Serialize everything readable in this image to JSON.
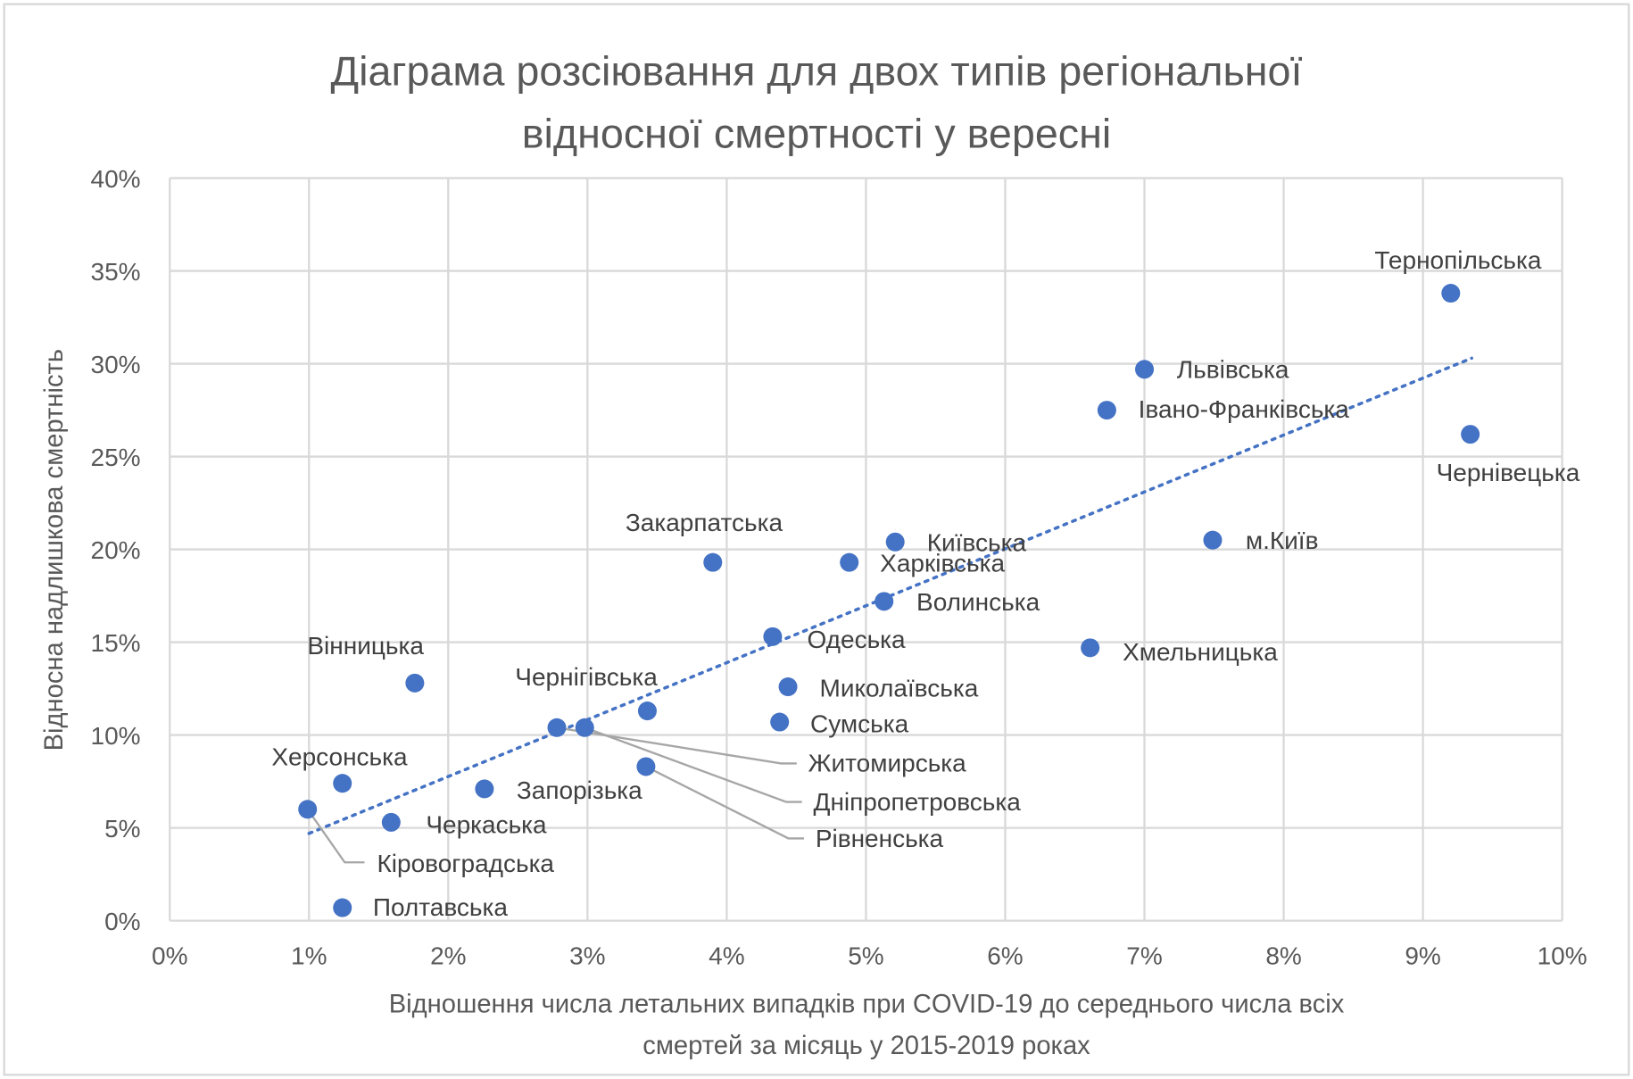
{
  "chart_data": {
    "type": "scatter",
    "title": [
      "Діаграма розсіювання для двох типів регіональної",
      "відносної смертності у вересні"
    ],
    "xlabel": [
      "Відношення числа летальних випадків при COVID-19 до середнього числа всіх",
      "смертей за місяць у 2015-2019 роках"
    ],
    "ylabel": "Відносна надлишкова смертність",
    "xlim": [
      0,
      10
    ],
    "ylim": [
      0,
      40
    ],
    "xticks": [
      "0%",
      "1%",
      "2%",
      "3%",
      "4%",
      "5%",
      "6%",
      "7%",
      "8%",
      "9%",
      "10%"
    ],
    "yticks": [
      "0%",
      "5%",
      "10%",
      "15%",
      "20%",
      "25%",
      "30%",
      "35%",
      "40%"
    ],
    "grid": true,
    "marker_color": "#4472C4",
    "trendline": {
      "style": "dotted",
      "type": "linear",
      "from": [
        1.0,
        4.7
      ],
      "to": [
        9.35,
        30.3
      ]
    },
    "points": [
      {
        "label": "Тернопільська",
        "x": 9.2,
        "y": 33.8
      },
      {
        "label": "Львівська",
        "x": 7.0,
        "y": 29.7
      },
      {
        "label": "Івано-Франківська",
        "x": 6.73,
        "y": 27.5
      },
      {
        "label": "Чернівецька",
        "x": 9.34,
        "y": 26.2
      },
      {
        "label": "м.Київ",
        "x": 7.49,
        "y": 20.5
      },
      {
        "label": "Київська",
        "x": 5.21,
        "y": 20.4
      },
      {
        "label": "Закарпатська",
        "x": 3.9,
        "y": 19.3
      },
      {
        "label": "Харківська",
        "x": 4.88,
        "y": 19.3
      },
      {
        "label": "Волинська",
        "x": 5.13,
        "y": 17.2
      },
      {
        "label": "Одеська",
        "x": 4.33,
        "y": 15.3
      },
      {
        "label": "Хмельницька",
        "x": 6.61,
        "y": 14.7
      },
      {
        "label": "Вінницька",
        "x": 1.76,
        "y": 12.8
      },
      {
        "label": "Миколаївська",
        "x": 4.44,
        "y": 12.6
      },
      {
        "label": "Чернігівська",
        "x": 3.43,
        "y": 11.3
      },
      {
        "label": "Сумська",
        "x": 4.38,
        "y": 10.7
      },
      {
        "label": "Житомирська",
        "x": 2.78,
        "y": 10.4
      },
      {
        "label": "Дніпропетровська",
        "x": 2.98,
        "y": 10.4
      },
      {
        "label": "Рівненська",
        "x": 3.42,
        "y": 8.3
      },
      {
        "label": "Херсонська",
        "x": 1.24,
        "y": 7.4
      },
      {
        "label": "Запорізька",
        "x": 2.26,
        "y": 7.1
      },
      {
        "label": "Кіровоградська",
        "x": 0.99,
        "y": 6.0
      },
      {
        "label": "Черкаська",
        "x": 1.59,
        "y": 5.3
      },
      {
        "label": "Полтавська",
        "x": 1.24,
        "y": 0.7
      }
    ]
  }
}
